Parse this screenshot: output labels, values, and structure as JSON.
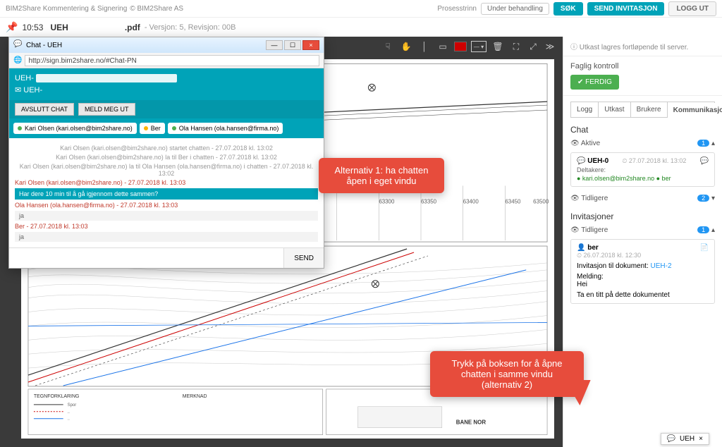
{
  "topbar": {
    "title": "BIM2Share Kommentering & Signering",
    "copyright": "© BIM2Share AS",
    "process_label": "Prosesstrinn",
    "status": "Under behandling",
    "btn_search": "SØK",
    "btn_invite": "SEND INVITASJON",
    "btn_logout": "LOGG UT"
  },
  "docbar": {
    "time": "10:53",
    "name": "UEH",
    "ext": ".pdf",
    "meta": "- Versjon: 5, Revisjon: 00B"
  },
  "viewer": {
    "background": "#3a3a3a",
    "swatch_color": "#c00000",
    "axis_labels": [
      "63300",
      "63350",
      "63400",
      "63450",
      "63500"
    ]
  },
  "callouts": {
    "c1": "Alternativ 1: ha chatten åpen i eget vindu",
    "c2": "Trykk på boksen for å åpne chatten i samme vindu (alternativ 2)"
  },
  "chat": {
    "win_title": "Chat - UEH",
    "url": "http://sign.bim2share.no/#Chat-PN",
    "header_lines": [
      "UEH-",
      "✉ UEH-"
    ],
    "btn_avslutt": "AVSLUTT CHAT",
    "btn_meld": "MELD MEG UT",
    "users": [
      {
        "dot": "g",
        "label": "Kari Olsen (kari.olsen@bim2share.no)"
      },
      {
        "dot": "y",
        "label": "Ber"
      },
      {
        "dot": "g",
        "label": "Ola Hansen (ola.hansen@firma.no)"
      }
    ],
    "log": [
      {
        "t": "meta",
        "txt": "Kari Olsen (kari.olsen@bim2share.no) startet chatten - 27.07.2018 kl. 13:02"
      },
      {
        "t": "meta",
        "txt": "Kari Olsen (kari.olsen@bim2share.no) la til Ber                              i chatten - 27.07.2018 kl. 13:02"
      },
      {
        "t": "meta",
        "txt": "Kari Olsen (kari.olsen@bim2share.no) la til Ola Hansen (ola.hansen@firma.no) i chatten - 27.07.2018 kl. 13:02"
      },
      {
        "t": "from",
        "txt": "Kari Olsen (kari.olsen@bim2share.no) - 27.07.2018 kl. 13:03"
      },
      {
        "t": "hl",
        "txt": "Har dere 10 min til å gå igjennom dette sammen?"
      },
      {
        "t": "from",
        "txt": "Ola Hansen (ola.hansen@firma.no) - 27.07.2018 kl. 13:03"
      },
      {
        "t": "ans",
        "txt": "ja"
      },
      {
        "t": "from",
        "txt": "Ber                                              - 27.07.2018 kl. 13:03"
      },
      {
        "t": "ans",
        "txt": "ja"
      }
    ],
    "send": "SEND"
  },
  "side": {
    "note": "ⓘ Utkast lagres fortløpende til server.",
    "faglig": "Faglig kontroll",
    "ferdig": "✔ FERDIG",
    "tabs": [
      "Logg",
      "Utkast",
      "Brukere",
      "Kommunikasjon"
    ],
    "chat_h": "Chat",
    "aktive": "Aktive",
    "aktive_count": "1",
    "card_title": "UEH-0",
    "card_ts": "⏲ 27.07.2018 kl. 13:02",
    "deltakere": "Deltakere:",
    "participants": "● kari.olsen@bim2share.no  ● ber",
    "tidligere": "Tidligere",
    "tidligere_count": "2",
    "inv_h": "Invitasjoner",
    "inv_tid": "Tidligere",
    "inv_count": "1",
    "inv_user": "ber",
    "inv_ts": "⏲ 26.07.2018 kl. 12:30",
    "inv_to": "Invitasjon til dokument:",
    "inv_doc": "UEH-2",
    "inv_msg_l": "Melding:",
    "inv_msg": "Hei",
    "inv_body": "Ta en titt på dette dokumentet"
  },
  "mini": {
    "icon": "💬",
    "label": "UEH",
    "x": "×"
  }
}
